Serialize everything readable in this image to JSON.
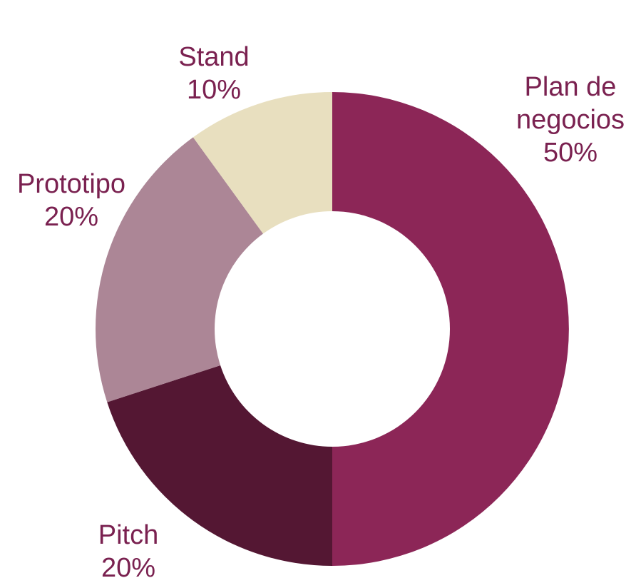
{
  "chart_data": {
    "type": "pie",
    "donut": true,
    "title": "",
    "slices": [
      {
        "label": [
          "Plan de",
          "negocios"
        ],
        "percent_label": "50%",
        "value": 50,
        "color": "#8c2657"
      },
      {
        "label": [
          "Pitch"
        ],
        "percent_label": "20%",
        "value": 20,
        "color": "#541733"
      },
      {
        "label": [
          "Prototipo"
        ],
        "percent_label": "20%",
        "value": 20,
        "color": "#ac8696"
      },
      {
        "label": [
          "Stand"
        ],
        "percent_label": "10%",
        "value": 10,
        "color": "#e8dfbf"
      }
    ],
    "start_angle": "12 o'clock",
    "direction": "clockwise",
    "legend": "none",
    "label_color": "#7a2150"
  }
}
